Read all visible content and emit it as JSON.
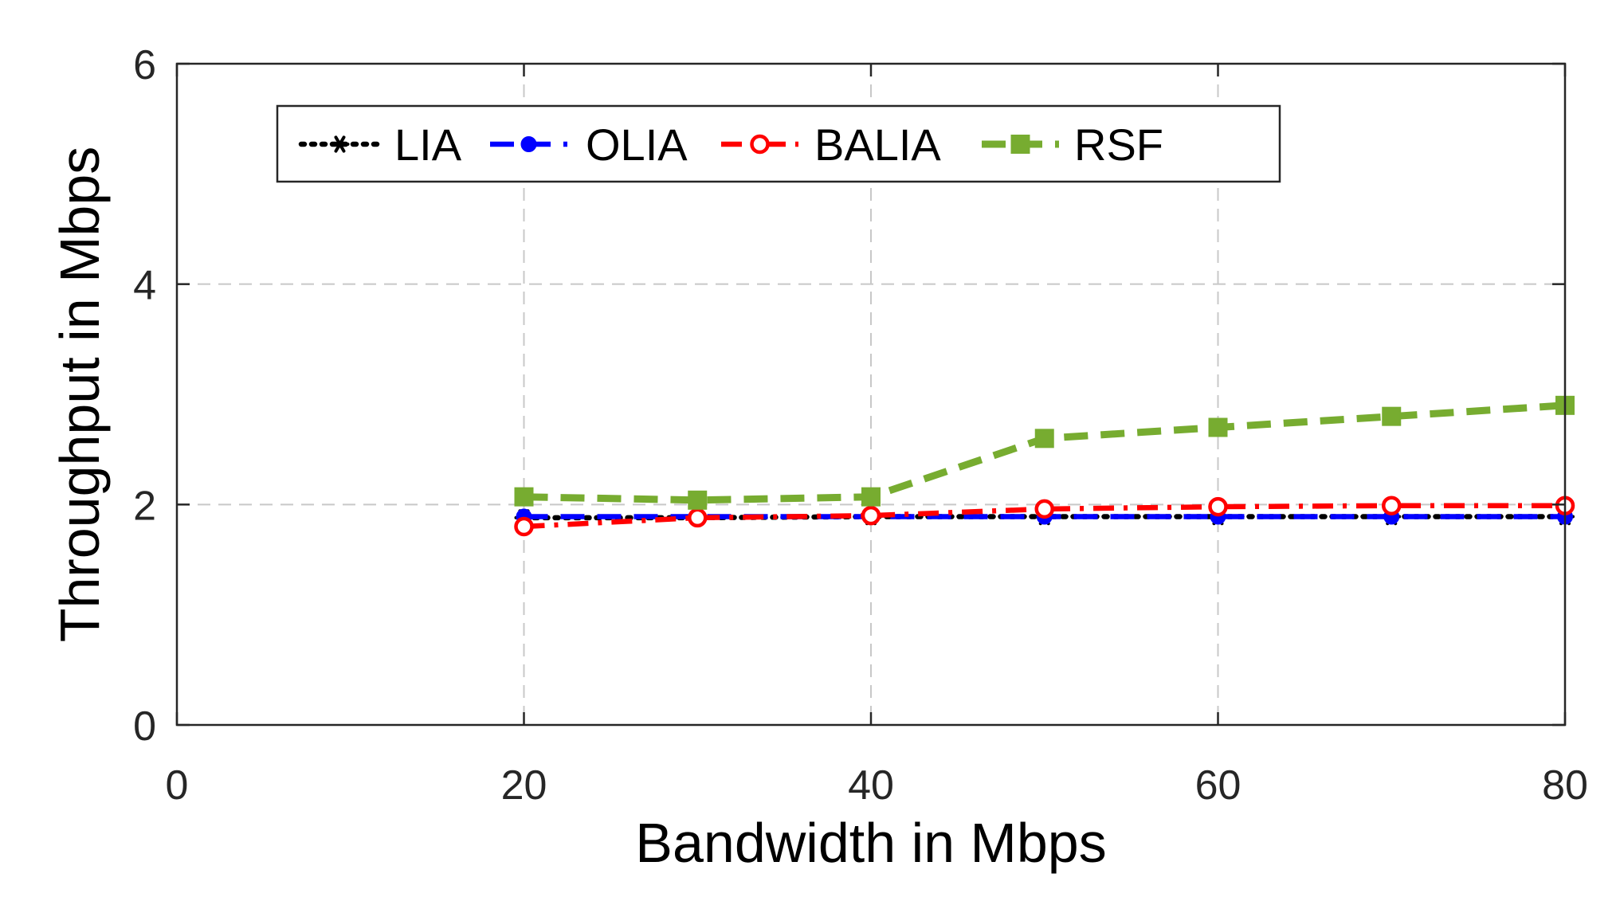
{
  "chart_data": {
    "type": "line",
    "title": "",
    "xlabel": "Bandwidth in Mbps",
    "ylabel": "Throughput in Mbps",
    "xlim": [
      0,
      80
    ],
    "ylim": [
      0,
      6
    ],
    "xticks": [
      0,
      20,
      40,
      60,
      80
    ],
    "yticks": [
      0,
      2,
      4,
      6
    ],
    "grid": true,
    "legend_position": "top-left, horizontal",
    "x": [
      20,
      30,
      40,
      50,
      60,
      70,
      80
    ],
    "series": [
      {
        "name": "LIA",
        "values": [
          1.88,
          1.88,
          1.89,
          1.89,
          1.89,
          1.89,
          1.89
        ],
        "color": "#000000",
        "dash": "dotted",
        "marker": "asterisk"
      },
      {
        "name": "OLIA",
        "values": [
          1.89,
          1.89,
          1.89,
          1.89,
          1.89,
          1.89,
          1.89
        ],
        "color": "#0000ff",
        "dash": "dashed",
        "marker": "filled-circle"
      },
      {
        "name": "BALIA",
        "values": [
          1.8,
          1.88,
          1.9,
          1.96,
          1.98,
          1.99,
          1.99
        ],
        "color": "#ff0000",
        "dash": "dash-dot",
        "marker": "open-circle"
      },
      {
        "name": "RSF",
        "values": [
          2.07,
          2.04,
          2.07,
          2.6,
          2.7,
          2.8,
          2.9
        ],
        "color": "#77ac30",
        "dash": "dashed",
        "marker": "filled-square"
      }
    ]
  }
}
